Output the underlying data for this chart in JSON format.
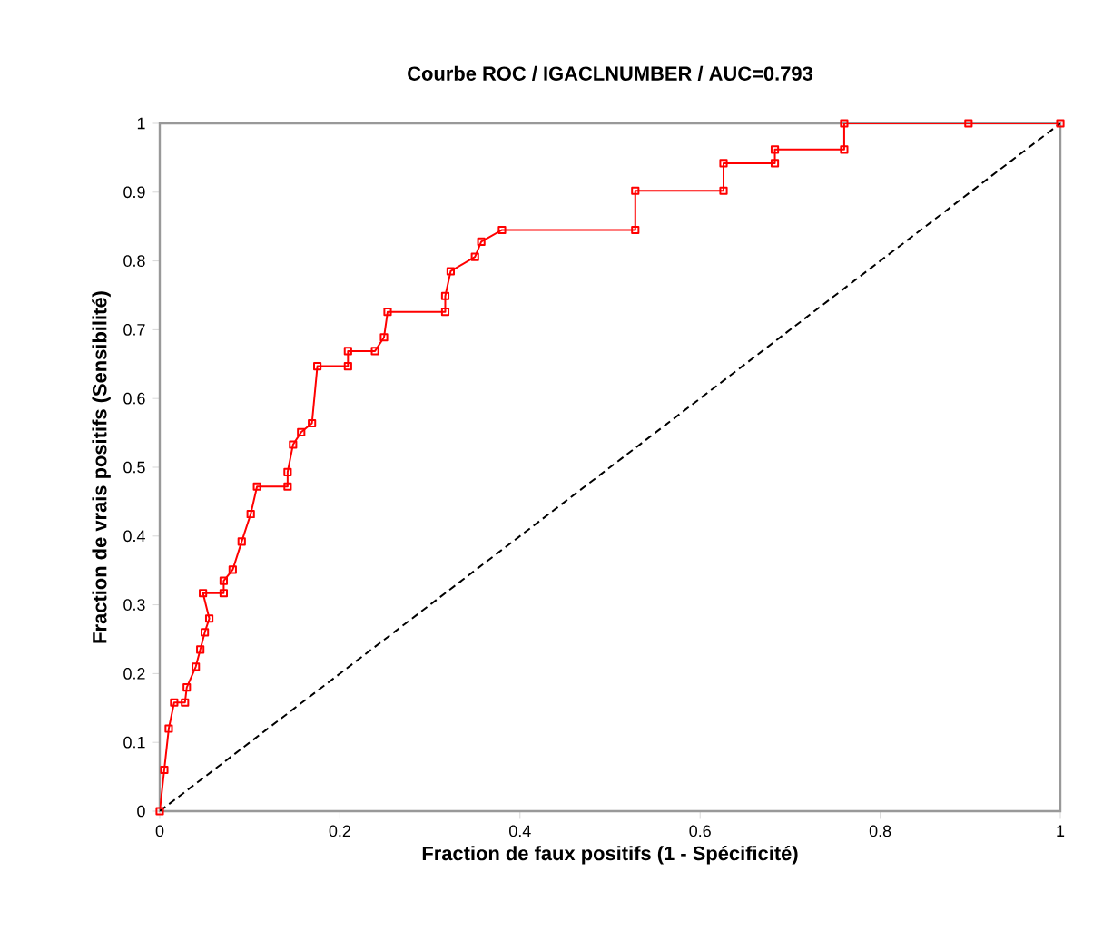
{
  "chart_data": {
    "type": "line",
    "title": "Courbe ROC / IGACLNUMBER / AUC=0.793",
    "xlabel": "Fraction de faux positifs  (1 - Spécificité)",
    "ylabel": "Fraction de vrais positifs  (Sensibilité)",
    "series": [
      {
        "color": "#ff0000",
        "marker": "square",
        "line_style": "solid",
        "x": [
          0,
          0.005,
          0.01,
          0.016,
          0.028,
          0.03,
          0.04,
          0.045,
          0.05,
          0.055,
          0.048,
          0.071,
          0.071,
          0.081,
          0.091,
          0.101,
          0.108,
          0.142,
          0.142,
          0.148,
          0.157,
          0.169,
          0.175,
          0.209,
          0.209,
          0.239,
          0.249,
          0.253,
          0.317,
          0.317,
          0.323,
          0.35,
          0.357,
          0.38,
          0.528,
          0.528,
          0.626,
          0.626,
          0.683,
          0.683,
          0.76,
          0.76,
          0.898,
          1
        ],
        "values": [
          0,
          0.06,
          0.12,
          0.158,
          0.158,
          0.18,
          0.21,
          0.235,
          0.26,
          0.28,
          0.317,
          0.317,
          0.335,
          0.351,
          0.392,
          0.432,
          0.472,
          0.472,
          0.493,
          0.533,
          0.551,
          0.564,
          0.647,
          0.647,
          0.669,
          0.669,
          0.689,
          0.726,
          0.726,
          0.749,
          0.785,
          0.806,
          0.828,
          0.845,
          0.845,
          0.902,
          0.902,
          0.942,
          0.942,
          0.962,
          0.962,
          1,
          1,
          1
        ]
      },
      {
        "color": "#000000",
        "marker": "none",
        "line_style": "dashed",
        "x": [
          0,
          1
        ],
        "values": [
          0,
          1
        ]
      }
    ],
    "xlim": [
      0,
      1
    ],
    "ylim": [
      0,
      1
    ],
    "xticks": [
      0,
      0.2,
      0.4,
      0.6,
      0.8,
      1
    ],
    "yticks": [
      0,
      0.1,
      0.2,
      0.3,
      0.4,
      0.5,
      0.6,
      0.7,
      0.8,
      0.9,
      1
    ],
    "grid": false
  }
}
